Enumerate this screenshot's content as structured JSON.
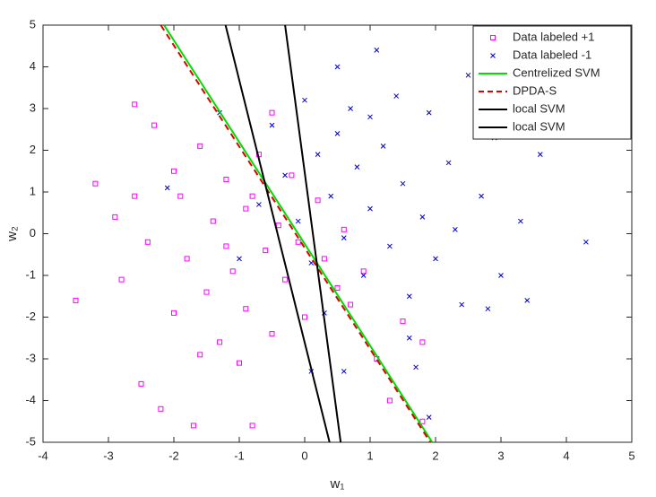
{
  "chart_data": {
    "type": "scatter",
    "xlabel": "w₁",
    "ylabel": "w₂",
    "xlim": [
      -4,
      5
    ],
    "ylim": [
      -5,
      5
    ],
    "xticks": [
      -4,
      -3,
      -2,
      -1,
      0,
      1,
      2,
      3,
      4,
      5
    ],
    "yticks": [
      -5,
      -4,
      -3,
      -2,
      -1,
      0,
      1,
      2,
      3,
      4,
      5
    ],
    "legend": "upper right",
    "series": [
      {
        "name": "Data labeled +1",
        "color": "#ff00ff",
        "marker": "square",
        "x": [
          -3.5,
          -3.2,
          -2.9,
          -2.6,
          -2.5,
          -2.3,
          -2.2,
          -2.0,
          -1.9,
          -1.8,
          -1.7,
          -1.6,
          -1.5,
          -1.4,
          -1.3,
          -1.2,
          -1.1,
          -1.0,
          -0.9,
          -0.9,
          -0.8,
          -0.7,
          -0.6,
          -0.5,
          -0.4,
          -0.3,
          -0.2,
          -0.1,
          0.0,
          0.2,
          0.3,
          0.5,
          0.6,
          0.7,
          0.9,
          1.1,
          1.3,
          1.5,
          1.8,
          -2.8,
          -2.4,
          -2.0,
          -1.6,
          -1.2,
          -0.8,
          -0.5,
          1.8,
          -2.6
        ],
        "y": [
          -1.6,
          1.2,
          0.4,
          3.1,
          -3.6,
          2.6,
          -4.2,
          -1.9,
          0.9,
          -0.6,
          -4.6,
          2.1,
          -1.4,
          0.3,
          -2.6,
          1.3,
          -0.9,
          -3.1,
          0.6,
          -1.8,
          -4.6,
          1.9,
          -0.4,
          -2.4,
          0.2,
          -1.1,
          1.4,
          -0.2,
          -2.0,
          0.8,
          -0.6,
          -1.3,
          0.1,
          -1.7,
          -0.9,
          -3.0,
          -4.0,
          -2.1,
          -2.6,
          -1.1,
          -0.2,
          1.5,
          -2.9,
          -0.3,
          0.9,
          2.9,
          -4.5,
          0.9
        ]
      },
      {
        "name": "Data labeled  -1",
        "color": "#0000cc",
        "marker": "x",
        "x": [
          4.3,
          3.4,
          3.3,
          3.0,
          2.9,
          2.7,
          2.5,
          2.4,
          2.2,
          2.0,
          1.9,
          1.8,
          1.6,
          1.5,
          1.4,
          1.3,
          1.2,
          1.1,
          1.0,
          0.9,
          0.8,
          0.7,
          0.6,
          0.5,
          0.4,
          0.3,
          0.2,
          0.1,
          0.0,
          -0.1,
          -0.3,
          -0.5,
          -0.7,
          -1.0,
          -1.3,
          -2.1,
          1.7,
          0.1,
          0.6,
          1.9,
          2.8,
          1.6,
          3.6,
          2.3,
          1.0,
          0.5
        ],
        "y": [
          -0.2,
          -1.6,
          0.3,
          -1.0,
          2.3,
          0.9,
          3.8,
          -1.7,
          1.7,
          -0.6,
          2.9,
          0.4,
          -1.5,
          1.2,
          3.3,
          -0.3,
          2.1,
          4.4,
          0.6,
          -1.0,
          1.6,
          3.0,
          -0.1,
          2.4,
          0.9,
          -1.9,
          1.9,
          -0.7,
          3.2,
          0.3,
          1.4,
          2.6,
          0.7,
          -0.6,
          2.9,
          1.1,
          -3.2,
          -3.3,
          -3.3,
          -4.4,
          -1.8,
          -2.5,
          1.9,
          0.1,
          2.8,
          4.0
        ]
      }
    ],
    "lines": [
      {
        "name": "Centrelized SVM",
        "color": "#00dd00",
        "dash": false,
        "x": [
          -2.15,
          1.95
        ],
        "y": [
          5,
          -5
        ]
      },
      {
        "name": "DPDA-S",
        "color": "#dd0000",
        "dash": true,
        "x": [
          -2.2,
          1.92
        ],
        "y": [
          5,
          -5
        ]
      },
      {
        "name": "local SVM",
        "color": "#000000",
        "dash": false,
        "x": [
          -1.21,
          0.38
        ],
        "y": [
          5,
          -5
        ]
      },
      {
        "name": "local SVM",
        "color": "#000000",
        "dash": false,
        "x": [
          -0.3,
          0.55
        ],
        "y": [
          5,
          -5
        ]
      }
    ]
  }
}
